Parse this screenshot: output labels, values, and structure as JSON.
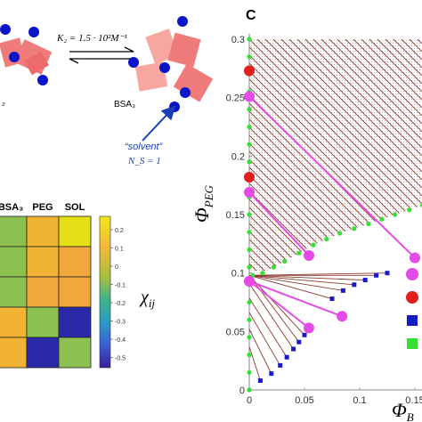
{
  "panel_c_label": "C",
  "schematic": {
    "equilibrium_label": "K₂ = 1.5 · 10²M⁻¹",
    "left_complex_label": "₂",
    "trimer_label": "BSA₃",
    "solvent_label": "“solvent”",
    "ns_label": "N_S = 1",
    "colors": {
      "protein": "#f07b7b",
      "protein_light": "#f7a6a0",
      "blue": "#0a14c8",
      "red": "#e0201b",
      "arrow": "#1a3fb5"
    }
  },
  "heatmap": {
    "col_labels": [
      "BSA₃",
      "PEG",
      "SOL"
    ],
    "cells": [
      [
        "#8cc152",
        "#f0b233",
        "#e6e117"
      ],
      [
        "#8cc152",
        "#f0b233",
        "#f0a83c"
      ],
      [
        "#8cc152",
        "#f0a83c",
        "#f0a83c"
      ],
      [
        "#f2b233",
        "#8cc152",
        "#2a2aa8"
      ],
      [
        "#f2b233",
        "#2a2aa8",
        "#8cc152"
      ]
    ],
    "colorbar_ticks": [
      "0.2",
      "0.1",
      "0",
      "-0.1",
      "-0.2",
      "-0.3",
      "-0.4",
      "-0.5"
    ],
    "colorbar_label": "χ_ij"
  },
  "chart_data": {
    "type": "scatter",
    "ylabel": "Φ_PEG",
    "xlabel": "Φ_B",
    "x_ticks": [
      "0",
      "0.05",
      "0.1",
      "0.15"
    ],
    "y_ticks": [
      "0",
      "0.05",
      "0.1",
      "0.15",
      "0.2",
      "0.25",
      "0.3"
    ],
    "xlim": [
      0,
      0.16
    ],
    "ylim": [
      0,
      0.3
    ],
    "green_boundary_left": [
      [
        0,
        0
      ],
      [
        0,
        0.015
      ],
      [
        0,
        0.03
      ],
      [
        0,
        0.045
      ],
      [
        0,
        0.06
      ],
      [
        0,
        0.075
      ],
      [
        0,
        0.09
      ],
      [
        0,
        0.105
      ],
      [
        0,
        0.12
      ],
      [
        0,
        0.135
      ],
      [
        0,
        0.15
      ],
      [
        0,
        0.165
      ],
      [
        0,
        0.18
      ],
      [
        0,
        0.195
      ],
      [
        0,
        0.21
      ],
      [
        0,
        0.225
      ],
      [
        0,
        0.24
      ],
      [
        0,
        0.255
      ],
      [
        0,
        0.27
      ],
      [
        0,
        0.285
      ],
      [
        0,
        0.3
      ]
    ],
    "green_boundary_curve": [
      [
        0.003,
        0.098
      ],
      [
        0.012,
        0.1
      ],
      [
        0.022,
        0.105
      ],
      [
        0.032,
        0.11
      ],
      [
        0.045,
        0.117
      ],
      [
        0.058,
        0.124
      ],
      [
        0.07,
        0.129
      ],
      [
        0.082,
        0.134
      ],
      [
        0.095,
        0.138
      ],
      [
        0.108,
        0.142
      ],
      [
        0.12,
        0.146
      ],
      [
        0.132,
        0.15
      ],
      [
        0.145,
        0.154
      ],
      [
        0.157,
        0.158
      ]
    ],
    "blue_points": [
      [
        0.01,
        0.008
      ],
      [
        0.02,
        0.014
      ],
      [
        0.028,
        0.021
      ],
      [
        0.034,
        0.028
      ],
      [
        0.04,
        0.035
      ],
      [
        0.045,
        0.041
      ],
      [
        0.05,
        0.047
      ],
      [
        0.075,
        0.078
      ],
      [
        0.085,
        0.085
      ],
      [
        0.095,
        0.09
      ],
      [
        0.105,
        0.094
      ],
      [
        0.115,
        0.098
      ],
      [
        0.125,
        0.1
      ]
    ],
    "red_points": [
      [
        0,
        0.273
      ],
      [
        0,
        0.182
      ]
    ],
    "magenta_tie_lines": [
      [
        [
          0,
          0.251
        ],
        [
          0.15,
          0.113
        ]
      ],
      [
        [
          0,
          0.169
        ],
        [
          0.054,
          0.115
        ]
      ],
      [
        [
          0,
          0.093
        ],
        [
          0.084,
          0.063
        ]
      ],
      [
        [
          0,
          0.093
        ],
        [
          0.054,
          0.053
        ]
      ]
    ],
    "tie_line_color": "#8b3a2f",
    "colors": {
      "green": "#33e033",
      "blue": "#1a1ac8",
      "red": "#e0201b",
      "magenta": "#e64ae6"
    },
    "legend_markers": [
      "magenta",
      "red",
      "blue",
      "green"
    ]
  }
}
